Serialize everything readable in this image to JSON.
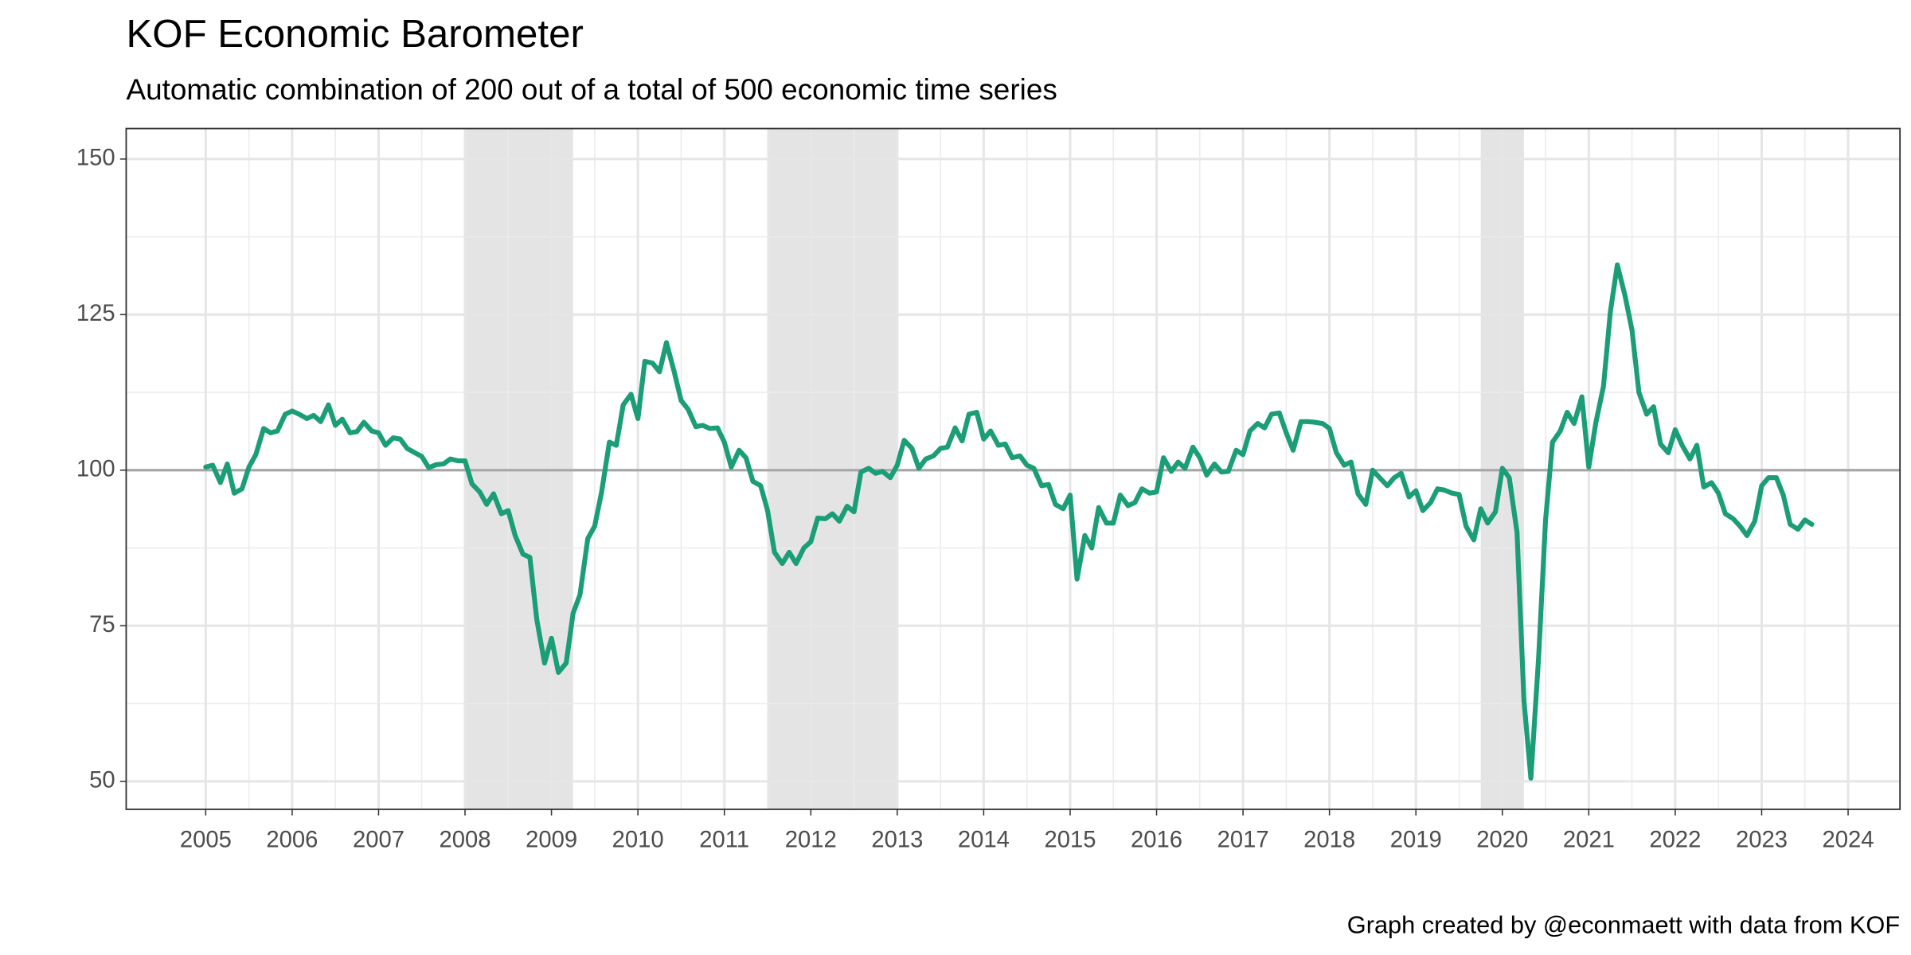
{
  "chart_data": {
    "type": "line",
    "title": "KOF Economic Barometer",
    "subtitle": "Automatic combination of 200 out of a total of 500 economic time series",
    "caption": "Graph created by @econmaett with data from KOF",
    "color": "#1b9e77",
    "xlim": [
      2004.08,
      2024.6
    ],
    "ylim": [
      45.5,
      154.9
    ],
    "xticks": [
      2005,
      2006,
      2007,
      2008,
      2009,
      2010,
      2011,
      2012,
      2013,
      2014,
      2015,
      2016,
      2017,
      2018,
      2019,
      2020,
      2021,
      2022,
      2023,
      2024
    ],
    "yticks": [
      50,
      75,
      100,
      125,
      150
    ],
    "grid": true,
    "reference_line": 100,
    "shaded_ranges": [
      [
        2008,
        2009.25
      ],
      [
        2011.5,
        2013
      ],
      [
        2019.75,
        2020.25
      ]
    ],
    "x": [
      2005,
      2005.08,
      2005.17,
      2005.25,
      2005.33,
      2005.42,
      2005.5,
      2005.58,
      2005.67,
      2005.75,
      2005.83,
      2005.92,
      2006,
      2006.08,
      2006.17,
      2006.25,
      2006.33,
      2006.42,
      2006.5,
      2006.58,
      2006.67,
      2006.75,
      2006.83,
      2006.92,
      2007,
      2007.08,
      2007.17,
      2007.25,
      2007.33,
      2007.42,
      2007.5,
      2007.58,
      2007.67,
      2007.75,
      2007.83,
      2007.92,
      2008,
      2008.08,
      2008.17,
      2008.25,
      2008.33,
      2008.42,
      2008.5,
      2008.58,
      2008.67,
      2008.75,
      2008.83,
      2008.92,
      2009,
      2009.08,
      2009.17,
      2009.25,
      2009.33,
      2009.42,
      2009.5,
      2009.58,
      2009.67,
      2009.75,
      2009.83,
      2009.92,
      2010,
      2010.08,
      2010.17,
      2010.25,
      2010.33,
      2010.42,
      2010.5,
      2010.58,
      2010.67,
      2010.75,
      2010.83,
      2010.92,
      2011,
      2011.08,
      2011.17,
      2011.25,
      2011.33,
      2011.42,
      2011.5,
      2011.58,
      2011.67,
      2011.75,
      2011.83,
      2011.92,
      2012,
      2012.08,
      2012.17,
      2012.25,
      2012.33,
      2012.42,
      2012.5,
      2012.58,
      2012.67,
      2012.75,
      2012.83,
      2012.92,
      2013,
      2013.08,
      2013.17,
      2013.25,
      2013.33,
      2013.42,
      2013.5,
      2013.58,
      2013.67,
      2013.75,
      2013.83,
      2013.92,
      2014,
      2014.08,
      2014.17,
      2014.25,
      2014.33,
      2014.42,
      2014.5,
      2014.58,
      2014.67,
      2014.75,
      2014.83,
      2014.92,
      2015,
      2015.08,
      2015.17,
      2015.25,
      2015.33,
      2015.42,
      2015.5,
      2015.58,
      2015.67,
      2015.75,
      2015.83,
      2015.92,
      2016,
      2016.08,
      2016.17,
      2016.25,
      2016.33,
      2016.42,
      2016.5,
      2016.58,
      2016.67,
      2016.75,
      2016.83,
      2016.92,
      2017,
      2017.08,
      2017.17,
      2017.25,
      2017.33,
      2017.42,
      2017.5,
      2017.58,
      2017.67,
      2017.75,
      2017.83,
      2017.92,
      2018,
      2018.08,
      2018.17,
      2018.25,
      2018.33,
      2018.42,
      2018.5,
      2018.58,
      2018.67,
      2018.75,
      2018.83,
      2018.92,
      2019,
      2019.08,
      2019.17,
      2019.25,
      2019.33,
      2019.42,
      2019.5,
      2019.58,
      2019.67,
      2019.75,
      2019.83,
      2019.92,
      2020,
      2020.08,
      2020.17,
      2020.25,
      2020.33,
      2020.42,
      2020.5,
      2020.58,
      2020.67,
      2020.75,
      2020.83,
      2020.92,
      2021,
      2021.08,
      2021.17,
      2021.25,
      2021.33,
      2021.42,
      2021.5,
      2021.58,
      2021.67,
      2021.75,
      2021.83,
      2021.92,
      2022,
      2022.08,
      2022.17,
      2022.25,
      2022.33,
      2022.42,
      2022.5,
      2022.58,
      2022.67,
      2022.75,
      2022.83,
      2022.92,
      2023,
      2023.08,
      2023.17,
      2023.25,
      2023.33,
      2023.42,
      2023.5,
      2023.58
    ],
    "values": [
      100.5,
      100.8,
      98,
      101,
      96.3,
      97,
      100.5,
      102.5,
      106.7,
      106,
      106.3,
      109,
      109.5,
      109,
      108.3,
      108.8,
      107.8,
      110.5,
      107.2,
      108.2,
      106,
      106.2,
      107.7,
      106.3,
      106,
      104,
      105.2,
      105,
      103.5,
      102.8,
      102.2,
      100.4,
      100.9,
      101,
      101.8,
      101.5,
      101.5,
      97.8,
      96.5,
      94.5,
      96.2,
      93,
      93.5,
      89.5,
      86.5,
      86,
      76,
      69,
      73,
      67.5,
      69,
      77,
      80,
      89,
      91,
      96.5,
      104.5,
      104,
      110.5,
      112.2,
      108.3,
      117.5,
      117.2,
      115.8,
      120.5,
      115.8,
      111.2,
      109.8,
      107,
      107.2,
      106.7,
      106.8,
      104.5,
      100.5,
      103.2,
      102,
      98.2,
      97.5,
      93.5,
      86.8,
      85,
      86.8,
      85,
      87.5,
      88.5,
      92.3,
      92.2,
      93,
      91.8,
      94.2,
      93.3,
      99.7,
      100.3,
      99.5,
      99.8,
      98.8,
      100.8,
      104.8,
      103.5,
      100.3,
      101.8,
      102.3,
      103.5,
      103.7,
      106.8,
      104.7,
      109,
      109.3,
      105,
      106.3,
      104,
      104.2,
      102,
      102.3,
      100.8,
      100.3,
      97.5,
      97.7,
      94.5,
      93.8,
      96,
      82.5,
      89.5,
      87.5,
      94,
      91.5,
      91.5,
      96,
      94.3,
      94.8,
      97,
      96.3,
      96.5,
      102,
      99.8,
      101.3,
      100.3,
      103.7,
      102,
      99.2,
      101,
      99.7,
      99.8,
      103.2,
      102.5,
      106.3,
      107.5,
      106.8,
      109,
      109.2,
      106,
      103.2,
      107.8,
      107.8,
      107.7,
      107.5,
      106.7,
      102.8,
      100.8,
      101.3,
      96.2,
      94.5,
      100,
      98.8,
      97.5,
      98.8,
      99.5,
      95.7,
      96.7,
      93.5,
      94.8,
      97,
      96.8,
      96.3,
      96.1,
      91,
      88.8,
      93.8,
      91.5,
      93.3,
      100.3,
      98.8,
      90,
      63,
      50.5,
      70,
      92,
      104.5,
      106.3,
      109.3,
      107.5,
      111.8,
      100.5,
      107.5,
      113.5,
      125.5,
      133,
      128,
      122.5,
      112.5,
      109,
      110.2,
      104.2,
      102.8,
      106.5,
      104,
      101.8,
      104,
      97.3,
      98,
      96.3,
      93,
      92.2,
      91,
      89.5,
      91.8,
      97.5,
      98.8,
      98.8,
      96,
      91.3,
      90.5,
      92,
      91.3
    ]
  }
}
